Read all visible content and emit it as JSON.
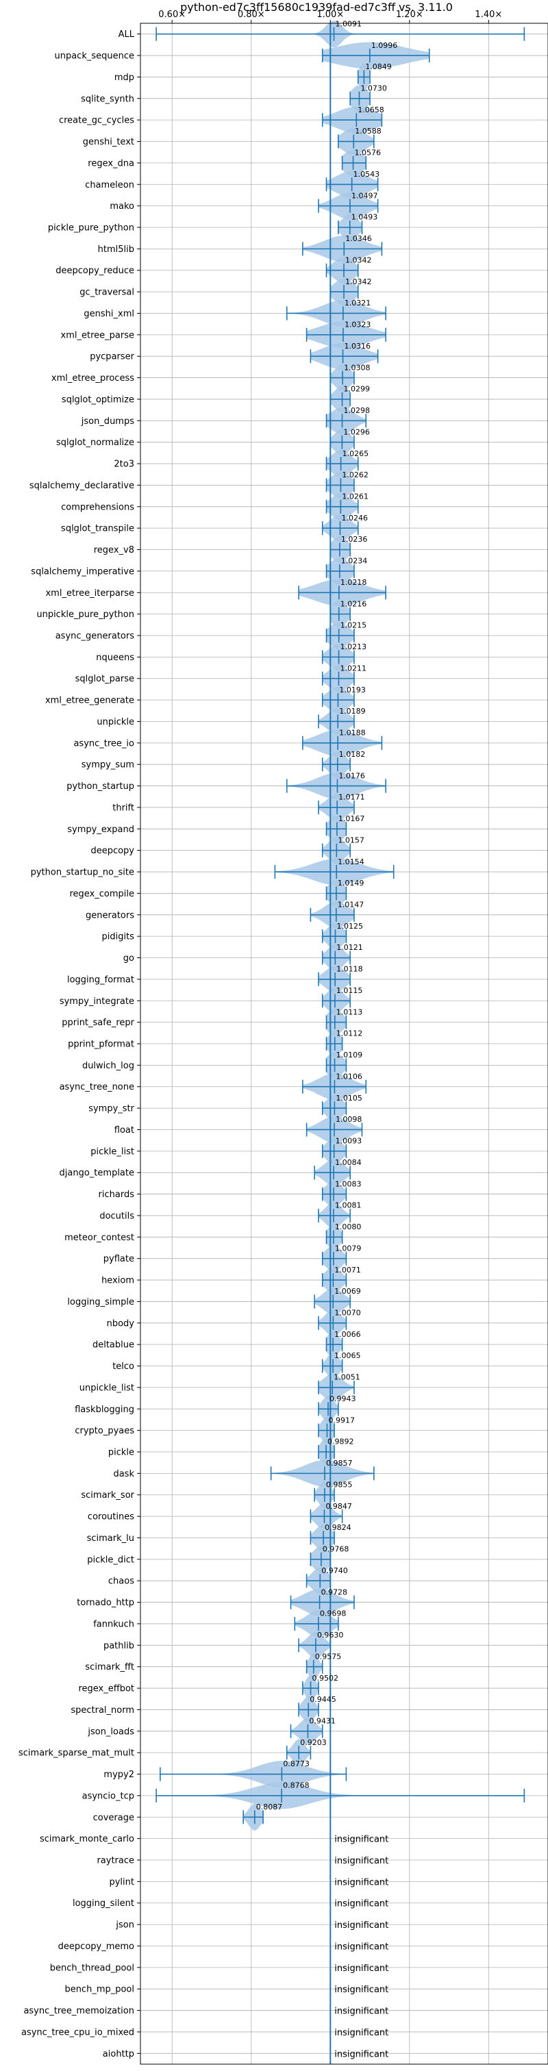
{
  "chart_data": {
    "type": "violin",
    "title": "python-ed7c3ff15680c1939fad-ed7c3ff vs. 3.11.0",
    "xlim": [
      0.52,
      1.55
    ],
    "x_ticks": [
      0.6,
      0.8,
      1.0,
      1.2,
      1.4
    ],
    "x_tick_labels": [
      "0.60×",
      "0.80×",
      "1.00×",
      "1.20×",
      "1.40×"
    ],
    "x_axis_position": "top",
    "grid": true,
    "reference_line": 1.0,
    "insignificant_label": "insignificant",
    "colors": {
      "violin": "#a8c8e6",
      "line": "#1f77b4",
      "grid": "#b0b0b0"
    },
    "rows": [
      {
        "name": "ALL",
        "value": 1.0091,
        "label": "1.0091",
        "min": 0.56,
        "max": 1.49,
        "spread": 0.02
      },
      {
        "name": "unpack_sequence",
        "value": 1.0996,
        "label": "1.0996",
        "min": 0.98,
        "max": 1.25,
        "spread": 0.09
      },
      {
        "name": "mdp",
        "value": 1.0849,
        "label": "1.0849",
        "min": 1.07,
        "max": 1.1,
        "spread": 0.012
      },
      {
        "name": "sqlite_synth",
        "value": 1.073,
        "label": "1.0730",
        "min": 1.05,
        "max": 1.1,
        "spread": 0.02
      },
      {
        "name": "create_gc_cycles",
        "value": 1.0658,
        "label": "1.0658",
        "min": 0.98,
        "max": 1.13,
        "spread": 0.05
      },
      {
        "name": "genshi_text",
        "value": 1.0588,
        "label": "1.0588",
        "min": 1.02,
        "max": 1.11,
        "spread": 0.03
      },
      {
        "name": "regex_dna",
        "value": 1.0576,
        "label": "1.0576",
        "min": 1.03,
        "max": 1.09,
        "spread": 0.025
      },
      {
        "name": "chameleon",
        "value": 1.0543,
        "label": "1.0543",
        "min": 0.99,
        "max": 1.12,
        "spread": 0.04
      },
      {
        "name": "mako",
        "value": 1.0497,
        "label": "1.0497",
        "min": 0.97,
        "max": 1.12,
        "spread": 0.04
      },
      {
        "name": "pickle_pure_python",
        "value": 1.0493,
        "label": "1.0493",
        "min": 1.02,
        "max": 1.08,
        "spread": 0.02
      },
      {
        "name": "html5lib",
        "value": 1.0346,
        "label": "1.0346",
        "min": 0.93,
        "max": 1.13,
        "spread": 0.05
      },
      {
        "name": "deepcopy_reduce",
        "value": 1.0342,
        "label": "1.0342",
        "min": 0.99,
        "max": 1.07,
        "spread": 0.025
      },
      {
        "name": "gc_traversal",
        "value": 1.0342,
        "label": "1.0342",
        "min": 1.0,
        "max": 1.07,
        "spread": 0.025
      },
      {
        "name": "genshi_xml",
        "value": 1.0321,
        "label": "1.0321",
        "min": 0.89,
        "max": 1.14,
        "spread": 0.05
      },
      {
        "name": "xml_etree_parse",
        "value": 1.0323,
        "label": "1.0323",
        "min": 0.94,
        "max": 1.14,
        "spread": 0.06
      },
      {
        "name": "pycparser",
        "value": 1.0316,
        "label": "1.0316",
        "min": 0.95,
        "max": 1.12,
        "spread": 0.05
      },
      {
        "name": "xml_etree_process",
        "value": 1.0308,
        "label": "1.0308",
        "min": 1.0,
        "max": 1.06,
        "spread": 0.02
      },
      {
        "name": "sqlglot_optimize",
        "value": 1.0299,
        "label": "1.0299",
        "min": 1.0,
        "max": 1.05,
        "spread": 0.02
      },
      {
        "name": "json_dumps",
        "value": 1.0298,
        "label": "1.0298",
        "min": 0.99,
        "max": 1.09,
        "spread": 0.03
      },
      {
        "name": "sqlglot_normalize",
        "value": 1.0296,
        "label": "1.0296",
        "min": 1.0,
        "max": 1.06,
        "spread": 0.02
      },
      {
        "name": "2to3",
        "value": 1.0265,
        "label": "1.0265",
        "min": 0.99,
        "max": 1.07,
        "spread": 0.025
      },
      {
        "name": "sqlalchemy_declarative",
        "value": 1.0262,
        "label": "1.0262",
        "min": 0.99,
        "max": 1.06,
        "spread": 0.025
      },
      {
        "name": "comprehensions",
        "value": 1.0261,
        "label": "1.0261",
        "min": 0.99,
        "max": 1.07,
        "spread": 0.025
      },
      {
        "name": "sqlglot_transpile",
        "value": 1.0246,
        "label": "1.0246",
        "min": 0.98,
        "max": 1.07,
        "spread": 0.025
      },
      {
        "name": "regex_v8",
        "value": 1.0236,
        "label": "1.0236",
        "min": 1.0,
        "max": 1.05,
        "spread": 0.02
      },
      {
        "name": "sqlalchemy_imperative",
        "value": 1.0234,
        "label": "1.0234",
        "min": 0.99,
        "max": 1.06,
        "spread": 0.025
      },
      {
        "name": "xml_etree_iterparse",
        "value": 1.0218,
        "label": "1.0218",
        "min": 0.92,
        "max": 1.14,
        "spread": 0.06
      },
      {
        "name": "unpickle_pure_python",
        "value": 1.0216,
        "label": "1.0216",
        "min": 1.0,
        "max": 1.05,
        "spread": 0.02
      },
      {
        "name": "async_generators",
        "value": 1.0215,
        "label": "1.0215",
        "min": 0.99,
        "max": 1.06,
        "spread": 0.025
      },
      {
        "name": "nqueens",
        "value": 1.0213,
        "label": "1.0213",
        "min": 0.98,
        "max": 1.06,
        "spread": 0.025
      },
      {
        "name": "sqlglot_parse",
        "value": 1.0211,
        "label": "1.0211",
        "min": 0.98,
        "max": 1.06,
        "spread": 0.025
      },
      {
        "name": "xml_etree_generate",
        "value": 1.0193,
        "label": "1.0193",
        "min": 0.98,
        "max": 1.06,
        "spread": 0.025
      },
      {
        "name": "unpickle",
        "value": 1.0189,
        "label": "1.0189",
        "min": 0.97,
        "max": 1.06,
        "spread": 0.025
      },
      {
        "name": "async_tree_io",
        "value": 1.0188,
        "label": "1.0188",
        "min": 0.93,
        "max": 1.13,
        "spread": 0.05
      },
      {
        "name": "sympy_sum",
        "value": 1.0182,
        "label": "1.0182",
        "min": 0.98,
        "max": 1.05,
        "spread": 0.02
      },
      {
        "name": "python_startup",
        "value": 1.0176,
        "label": "1.0176",
        "min": 0.89,
        "max": 1.14,
        "spread": 0.05
      },
      {
        "name": "thrift",
        "value": 1.0171,
        "label": "1.0171",
        "min": 0.97,
        "max": 1.06,
        "spread": 0.025
      },
      {
        "name": "sympy_expand",
        "value": 1.0167,
        "label": "1.0167",
        "min": 0.99,
        "max": 1.04,
        "spread": 0.02
      },
      {
        "name": "deepcopy",
        "value": 1.0157,
        "label": "1.0157",
        "min": 0.98,
        "max": 1.05,
        "spread": 0.02
      },
      {
        "name": "python_startup_no_site",
        "value": 1.0154,
        "label": "1.0154",
        "min": 0.86,
        "max": 1.16,
        "spread": 0.06
      },
      {
        "name": "regex_compile",
        "value": 1.0149,
        "label": "1.0149",
        "min": 0.99,
        "max": 1.04,
        "spread": 0.02
      },
      {
        "name": "generators",
        "value": 1.0147,
        "label": "1.0147",
        "min": 0.95,
        "max": 1.06,
        "spread": 0.03
      },
      {
        "name": "pidigits",
        "value": 1.0125,
        "label": "1.0125",
        "min": 0.98,
        "max": 1.04,
        "spread": 0.02
      },
      {
        "name": "go",
        "value": 1.0121,
        "label": "1.0121",
        "min": 0.98,
        "max": 1.05,
        "spread": 0.02
      },
      {
        "name": "logging_format",
        "value": 1.0118,
        "label": "1.0118",
        "min": 0.97,
        "max": 1.05,
        "spread": 0.025
      },
      {
        "name": "sympy_integrate",
        "value": 1.0115,
        "label": "1.0115",
        "min": 0.98,
        "max": 1.05,
        "spread": 0.02
      },
      {
        "name": "pprint_safe_repr",
        "value": 1.0113,
        "label": "1.0113",
        "min": 0.99,
        "max": 1.04,
        "spread": 0.02
      },
      {
        "name": "pprint_pformat",
        "value": 1.0112,
        "label": "1.0112",
        "min": 0.99,
        "max": 1.03,
        "spread": 0.015
      },
      {
        "name": "dulwich_log",
        "value": 1.0109,
        "label": "1.0109",
        "min": 0.99,
        "max": 1.04,
        "spread": 0.02
      },
      {
        "name": "async_tree_none",
        "value": 1.0106,
        "label": "1.0106",
        "min": 0.93,
        "max": 1.09,
        "spread": 0.04
      },
      {
        "name": "sympy_str",
        "value": 1.0105,
        "label": "1.0105",
        "min": 0.98,
        "max": 1.04,
        "spread": 0.02
      },
      {
        "name": "float",
        "value": 1.0098,
        "label": "1.0098",
        "min": 0.94,
        "max": 1.08,
        "spread": 0.035
      },
      {
        "name": "pickle_list",
        "value": 1.0093,
        "label": "1.0093",
        "min": 0.98,
        "max": 1.04,
        "spread": 0.02
      },
      {
        "name": "django_template",
        "value": 1.0084,
        "label": "1.0084",
        "min": 0.96,
        "max": 1.05,
        "spread": 0.025
      },
      {
        "name": "richards",
        "value": 1.0083,
        "label": "1.0083",
        "min": 0.98,
        "max": 1.04,
        "spread": 0.02
      },
      {
        "name": "docutils",
        "value": 1.0081,
        "label": "1.0081",
        "min": 0.97,
        "max": 1.05,
        "spread": 0.02
      },
      {
        "name": "meteor_contest",
        "value": 1.008,
        "label": "1.0080",
        "min": 0.99,
        "max": 1.03,
        "spread": 0.015
      },
      {
        "name": "pyflate",
        "value": 1.0079,
        "label": "1.0079",
        "min": 0.98,
        "max": 1.04,
        "spread": 0.02
      },
      {
        "name": "hexiom",
        "value": 1.0071,
        "label": "1.0071",
        "min": 0.98,
        "max": 1.04,
        "spread": 0.02
      },
      {
        "name": "logging_simple",
        "value": 1.0069,
        "label": "1.0069",
        "min": 0.96,
        "max": 1.05,
        "spread": 0.025
      },
      {
        "name": "nbody",
        "value": 1.007,
        "label": "1.0070",
        "min": 0.97,
        "max": 1.04,
        "spread": 0.02
      },
      {
        "name": "deltablue",
        "value": 1.0066,
        "label": "1.0066",
        "min": 0.99,
        "max": 1.03,
        "spread": 0.015
      },
      {
        "name": "telco",
        "value": 1.0065,
        "label": "1.0065",
        "min": 0.98,
        "max": 1.03,
        "spread": 0.015
      },
      {
        "name": "unpickle_list",
        "value": 1.0051,
        "label": "1.0051",
        "min": 0.97,
        "max": 1.06,
        "spread": 0.025
      },
      {
        "name": "flaskblogging",
        "value": 0.9943,
        "label": "0.9943",
        "min": 0.97,
        "max": 1.02,
        "spread": 0.015
      },
      {
        "name": "crypto_pyaes",
        "value": 0.9917,
        "label": "0.9917",
        "min": 0.97,
        "max": 1.01,
        "spread": 0.015
      },
      {
        "name": "pickle",
        "value": 0.9892,
        "label": "0.9892",
        "min": 0.97,
        "max": 1.01,
        "spread": 0.015
      },
      {
        "name": "dask",
        "value": 0.9857,
        "label": "0.9857",
        "min": 0.85,
        "max": 1.11,
        "spread": 0.05
      },
      {
        "name": "scimark_sor",
        "value": 0.9855,
        "label": "0.9855",
        "min": 0.96,
        "max": 1.01,
        "spread": 0.015
      },
      {
        "name": "coroutines",
        "value": 0.9847,
        "label": "0.9847",
        "min": 0.95,
        "max": 1.03,
        "spread": 0.02
      },
      {
        "name": "scimark_lu",
        "value": 0.9824,
        "label": "0.9824",
        "min": 0.95,
        "max": 1.01,
        "spread": 0.02
      },
      {
        "name": "pickle_dict",
        "value": 0.9768,
        "label": "0.9768",
        "min": 0.95,
        "max": 1.0,
        "spread": 0.02
      },
      {
        "name": "chaos",
        "value": 0.974,
        "label": "0.9740",
        "min": 0.94,
        "max": 1.0,
        "spread": 0.02
      },
      {
        "name": "tornado_http",
        "value": 0.9728,
        "label": "0.9728",
        "min": 0.9,
        "max": 1.06,
        "spread": 0.04
      },
      {
        "name": "fannkuch",
        "value": 0.9698,
        "label": "0.9698",
        "min": 0.91,
        "max": 1.02,
        "spread": 0.03
      },
      {
        "name": "pathlib",
        "value": 0.963,
        "label": "0.9630",
        "min": 0.92,
        "max": 1.0,
        "spread": 0.02
      },
      {
        "name": "scimark_fft",
        "value": 0.9575,
        "label": "0.9575",
        "min": 0.94,
        "max": 0.98,
        "spread": 0.012
      },
      {
        "name": "regex_effbot",
        "value": 0.9502,
        "label": "0.9502",
        "min": 0.93,
        "max": 0.97,
        "spread": 0.012
      },
      {
        "name": "spectral_norm",
        "value": 0.9445,
        "label": "0.9445",
        "min": 0.92,
        "max": 0.97,
        "spread": 0.015
      },
      {
        "name": "json_loads",
        "value": 0.9431,
        "label": "0.9431",
        "min": 0.9,
        "max": 0.98,
        "spread": 0.02
      },
      {
        "name": "scimark_sparse_mat_mult",
        "value": 0.9203,
        "label": "0.9203",
        "min": 0.89,
        "max": 0.95,
        "spread": 0.015
      },
      {
        "name": "mypy2",
        "value": 0.8773,
        "label": "0.8773",
        "min": 0.57,
        "max": 1.04,
        "spread": 0.06
      },
      {
        "name": "asyncio_tcp",
        "value": 0.8768,
        "label": "0.8768",
        "min": 0.56,
        "max": 1.49,
        "spread": 0.07
      },
      {
        "name": "coverage",
        "value": 0.8087,
        "label": "0.8087",
        "min": 0.78,
        "max": 0.83,
        "spread": 0.015
      },
      {
        "name": "scimark_monte_carlo",
        "insignificant": true
      },
      {
        "name": "raytrace",
        "insignificant": true
      },
      {
        "name": "pylint",
        "insignificant": true
      },
      {
        "name": "logging_silent",
        "insignificant": true
      },
      {
        "name": "json",
        "insignificant": true
      },
      {
        "name": "deepcopy_memo",
        "insignificant": true
      },
      {
        "name": "bench_thread_pool",
        "insignificant": true
      },
      {
        "name": "bench_mp_pool",
        "insignificant": true
      },
      {
        "name": "async_tree_memoization",
        "insignificant": true
      },
      {
        "name": "async_tree_cpu_io_mixed",
        "insignificant": true
      },
      {
        "name": "aiohttp",
        "insignificant": true
      }
    ]
  }
}
